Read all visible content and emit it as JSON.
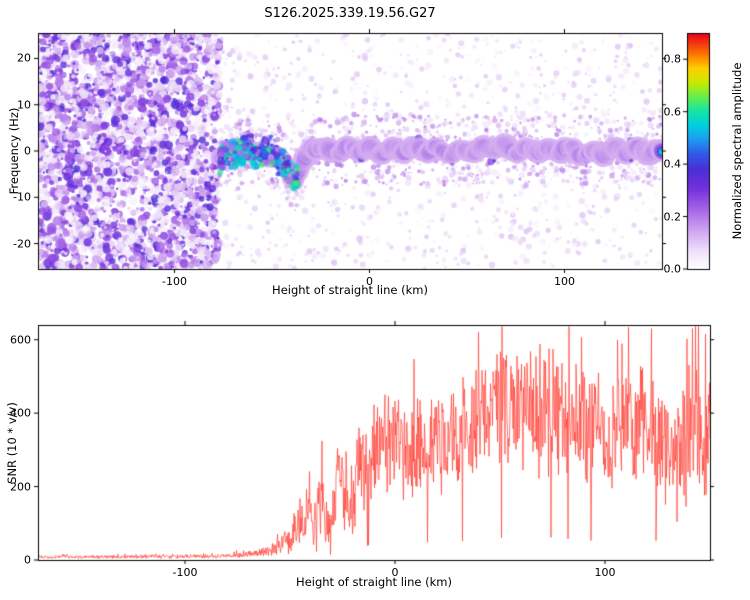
{
  "title": "S126.2025.339.19.56.G27",
  "chart_data": [
    {
      "type": "heatmap",
      "name": "spectrogram",
      "xlabel": "Height of straight line (km)",
      "ylabel": "Frequency (Hz)",
      "xlim": [
        -170,
        150
      ],
      "ylim": [
        -25.5,
        25.5
      ],
      "xticks": [
        -100,
        0,
        100
      ],
      "yticks": [
        -20,
        -10,
        0,
        10,
        20
      ],
      "grid": false,
      "colorbar": {
        "label": "Normalized spectral amplitude",
        "lim": [
          0,
          0.9
        ],
        "ticks": [
          {
            "value": 0.0,
            "label": "0.0"
          },
          {
            "value": 0.2,
            "label": "0.2"
          },
          {
            "value": 0.4,
            "label": "0.4"
          },
          {
            "value": 0.6,
            "label": "0.6"
          },
          {
            "value": 0.8,
            "label": "0.8"
          }
        ],
        "stops": [
          {
            "p": 0.0,
            "c": "#ffffff"
          },
          {
            "p": 0.07,
            "c": "#f0e2fa"
          },
          {
            "p": 0.16,
            "c": "#d0a6f0"
          },
          {
            "p": 0.26,
            "c": "#a35ee6"
          },
          {
            "p": 0.34,
            "c": "#7430dc"
          },
          {
            "p": 0.42,
            "c": "#4b2ed8"
          },
          {
            "p": 0.49,
            "c": "#2f5ce8"
          },
          {
            "p": 0.55,
            "c": "#1e9cf0"
          },
          {
            "p": 0.61,
            "c": "#00d0e0"
          },
          {
            "p": 0.67,
            "c": "#16e4a4"
          },
          {
            "p": 0.73,
            "c": "#66ee4e"
          },
          {
            "p": 0.79,
            "c": "#c8ea00"
          },
          {
            "p": 0.85,
            "c": "#ffd000"
          },
          {
            "p": 0.91,
            "c": "#ff7800"
          },
          {
            "p": 1.0,
            "c": "#e8001e"
          }
        ]
      },
      "noise_region": {
        "x_range": [
          -170,
          -77
        ],
        "amp_range": [
          0.02,
          0.38
        ]
      },
      "signal_band": {
        "x_start": -77,
        "amp_range": [
          0.5,
          0.92
        ],
        "centerline": [
          {
            "x": -77,
            "f": -2.0
          },
          {
            "x": -72,
            "f": 0.5
          },
          {
            "x": -68,
            "f": -1.5
          },
          {
            "x": -63,
            "f": 1.0
          },
          {
            "x": -58,
            "f": -1.0
          },
          {
            "x": -53,
            "f": 0.5
          },
          {
            "x": -47,
            "f": -1.5
          },
          {
            "x": -42,
            "f": -3.5
          },
          {
            "x": -38,
            "f": -6.5
          },
          {
            "x": -34,
            "f": -3.0
          },
          {
            "x": -30,
            "f": 1.2
          },
          {
            "x": -26,
            "f": 0.4
          },
          {
            "x": -20,
            "f": -0.5
          },
          {
            "x": -10,
            "f": 0.5
          },
          {
            "x": 0,
            "f": 0.0
          },
          {
            "x": 20,
            "f": 0.5
          },
          {
            "x": 40,
            "f": -0.3
          },
          {
            "x": 60,
            "f": 0.5
          },
          {
            "x": 80,
            "f": 0.0
          },
          {
            "x": 100,
            "f": 0.4
          },
          {
            "x": 120,
            "f": -0.2
          },
          {
            "x": 135,
            "f": 0.3
          },
          {
            "x": 150,
            "f": 0.0
          }
        ]
      }
    },
    {
      "type": "line",
      "name": "snr",
      "xlabel": "Height of straight line (km)",
      "ylabel": "SNR (10 * v/v)",
      "xlim": [
        -170,
        150
      ],
      "ylim": [
        0,
        640
      ],
      "xticks": [
        -100,
        0,
        100
      ],
      "yticks": [
        0,
        200,
        400,
        600
      ],
      "grid": false,
      "series": [
        {
          "name": "SNR",
          "color": "#ff4136",
          "envelope": [
            {
              "x": -170,
              "base": 8,
              "spread": 5
            },
            {
              "x": -120,
              "base": 9,
              "spread": 6
            },
            {
              "x": -90,
              "base": 10,
              "spread": 6
            },
            {
              "x": -80,
              "base": 11,
              "spread": 7
            },
            {
              "x": -70,
              "base": 15,
              "spread": 10
            },
            {
              "x": -62,
              "base": 22,
              "spread": 16
            },
            {
              "x": -55,
              "base": 35,
              "spread": 28
            },
            {
              "x": -50,
              "base": 60,
              "spread": 45
            },
            {
              "x": -46,
              "base": 90,
              "spread": 70
            },
            {
              "x": -42,
              "base": 130,
              "spread": 95
            },
            {
              "x": -39,
              "base": 110,
              "spread": 85
            },
            {
              "x": -36,
              "base": 190,
              "spread": 120
            },
            {
              "x": -33,
              "base": 120,
              "spread": 80
            },
            {
              "x": -30,
              "base": 70,
              "spread": 50
            },
            {
              "x": -27,
              "base": 230,
              "spread": 150
            },
            {
              "x": -23,
              "base": 150,
              "spread": 110
            },
            {
              "x": -20,
              "base": 120,
              "spread": 90
            },
            {
              "x": -17,
              "base": 280,
              "spread": 160
            },
            {
              "x": -14,
              "base": 250,
              "spread": 150
            },
            {
              "x": -10,
              "base": 300,
              "spread": 160
            },
            {
              "x": -5,
              "base": 280,
              "spread": 150
            },
            {
              "x": 0,
              "base": 320,
              "spread": 170
            },
            {
              "x": 10,
              "base": 300,
              "spread": 160
            },
            {
              "x": 20,
              "base": 340,
              "spread": 180
            },
            {
              "x": 30,
              "base": 330,
              "spread": 170
            },
            {
              "x": 40,
              "base": 390,
              "spread": 200
            },
            {
              "x": 50,
              "base": 400,
              "spread": 210
            },
            {
              "x": 57,
              "base": 430,
              "spread": 210
            },
            {
              "x": 65,
              "base": 400,
              "spread": 200
            },
            {
              "x": 72,
              "base": 420,
              "spread": 210
            },
            {
              "x": 80,
              "base": 390,
              "spread": 210
            },
            {
              "x": 90,
              "base": 360,
              "spread": 190
            },
            {
              "x": 100,
              "base": 340,
              "spread": 180
            },
            {
              "x": 110,
              "base": 370,
              "spread": 190
            },
            {
              "x": 120,
              "base": 390,
              "spread": 200
            },
            {
              "x": 128,
              "base": 320,
              "spread": 230
            },
            {
              "x": 135,
              "base": 280,
              "spread": 230
            },
            {
              "x": 142,
              "base": 380,
              "spread": 220
            },
            {
              "x": 150,
              "base": 330,
              "spread": 200
            }
          ]
        }
      ]
    }
  ]
}
